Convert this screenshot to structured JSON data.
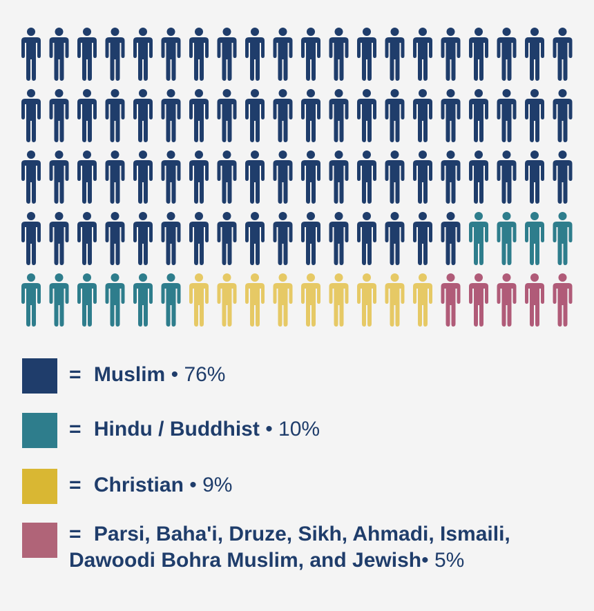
{
  "chart_data": {
    "type": "waffle",
    "icon": "person-icon",
    "total_icons": 100,
    "rows": 5,
    "columns": 20,
    "series": [
      {
        "label": "Muslim",
        "percent_label": "76%",
        "value": 76,
        "color": "#1f3d6b"
      },
      {
        "label": "Hindu / Buddhist",
        "percent_label": "10%",
        "value": 10,
        "color": "#2e7d8c"
      },
      {
        "label": "Christian",
        "percent_label": "9%",
        "value": 9,
        "color": "#e6c965"
      },
      {
        "label": "Parsi, Baha'i, Druze, Sikh, Ahmadi, Ismaili,",
        "label_line2": "Dawoodi Bohra Muslim, and Jewish",
        "percent_label": "5%",
        "value": 5,
        "color": "#b05b78"
      }
    ]
  },
  "legend": {
    "equals": "=",
    "bullet": "•",
    "swatch_colors": [
      "#1f3d6b",
      "#2e7d8c",
      "#d9b733",
      "#b06478"
    ]
  }
}
